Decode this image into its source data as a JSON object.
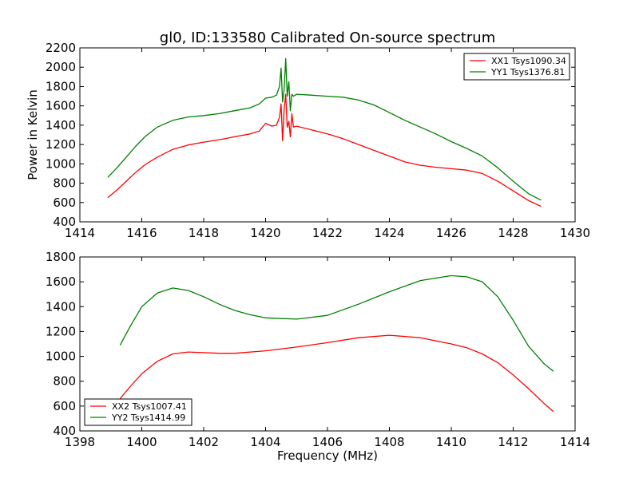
{
  "figure": {
    "title": "gl0, ID:133580 Calibrated On-source spectrum",
    "ylabel": "Power in Kelvin",
    "xlabel": "Frequency (MHz)"
  },
  "chart_data": [
    {
      "type": "line",
      "title": "gl0, ID:133580 Calibrated On-source spectrum",
      "xlabel": "",
      "ylabel": "Power in Kelvin",
      "xlim": [
        1414,
        1430
      ],
      "ylim": [
        400,
        2200
      ],
      "xticks": [
        1414,
        1416,
        1418,
        1420,
        1422,
        1424,
        1426,
        1428,
        1430
      ],
      "yticks": [
        400,
        600,
        800,
        1000,
        1200,
        1400,
        1600,
        1800,
        2000,
        2200
      ],
      "grid": false,
      "legend_position": "top-right",
      "series": [
        {
          "name": "XX1 Tsys1090.34",
          "color": "#ff0000",
          "x": [
            1414.9,
            1415.2,
            1415.5,
            1415.8,
            1416.1,
            1416.5,
            1417.0,
            1417.5,
            1418.0,
            1418.5,
            1419.0,
            1419.5,
            1419.8,
            1420.0,
            1420.2,
            1420.35,
            1420.45,
            1420.5,
            1420.55,
            1420.6,
            1420.65,
            1420.7,
            1420.75,
            1420.8,
            1420.85,
            1420.9,
            1421.0,
            1421.5,
            1422.0,
            1422.5,
            1423.0,
            1423.5,
            1424.0,
            1424.5,
            1425.0,
            1425.5,
            1426.0,
            1426.5,
            1427.0,
            1427.5,
            1428.0,
            1428.5,
            1428.9
          ],
          "y": [
            650,
            730,
            820,
            910,
            990,
            1070,
            1150,
            1195,
            1225,
            1250,
            1280,
            1310,
            1340,
            1420,
            1390,
            1400,
            1480,
            1620,
            1240,
            1560,
            1720,
            1380,
            1440,
            1280,
            1520,
            1380,
            1390,
            1350,
            1310,
            1260,
            1200,
            1140,
            1080,
            1020,
            985,
            965,
            950,
            935,
            900,
            820,
            720,
            620,
            560
          ]
        },
        {
          "name": "YY1 Tsys1376.81",
          "color": "#008000",
          "x": [
            1414.9,
            1415.2,
            1415.5,
            1415.8,
            1416.1,
            1416.5,
            1417.0,
            1417.5,
            1418.0,
            1418.5,
            1419.0,
            1419.5,
            1419.8,
            1420.0,
            1420.2,
            1420.35,
            1420.45,
            1420.5,
            1420.55,
            1420.6,
            1420.65,
            1420.7,
            1420.75,
            1420.8,
            1420.85,
            1420.9,
            1421.0,
            1421.5,
            1422.0,
            1422.5,
            1423.0,
            1423.5,
            1424.0,
            1424.5,
            1425.0,
            1425.5,
            1426.0,
            1426.5,
            1427.0,
            1427.5,
            1428.0,
            1428.5,
            1428.9
          ],
          "y": [
            860,
            960,
            1070,
            1180,
            1280,
            1380,
            1450,
            1485,
            1500,
            1520,
            1550,
            1580,
            1620,
            1680,
            1690,
            1710,
            1800,
            1990,
            1640,
            1770,
            2090,
            1700,
            1850,
            1550,
            1720,
            1700,
            1720,
            1710,
            1700,
            1690,
            1660,
            1610,
            1530,
            1450,
            1380,
            1310,
            1230,
            1160,
            1080,
            960,
            820,
            690,
            625
          ]
        }
      ]
    },
    {
      "type": "line",
      "title": "",
      "xlabel": "Frequency (MHz)",
      "ylabel": "",
      "xlim": [
        1398,
        1414
      ],
      "ylim": [
        400,
        1800
      ],
      "xticks": [
        1398,
        1400,
        1402,
        1404,
        1406,
        1408,
        1410,
        1412,
        1414
      ],
      "yticks": [
        400,
        600,
        800,
        1000,
        1200,
        1400,
        1600,
        1800
      ],
      "grid": false,
      "legend_position": "bottom-left",
      "series": [
        {
          "name": "XX2 Tsys1007.41",
          "color": "#ff0000",
          "x": [
            1399.3,
            1399.6,
            1400.0,
            1400.5,
            1401.0,
            1401.5,
            1402.0,
            1402.5,
            1403.0,
            1404.0,
            1405.0,
            1406.0,
            1407.0,
            1408.0,
            1409.0,
            1410.0,
            1410.5,
            1411.0,
            1411.5,
            1412.0,
            1412.5,
            1413.0,
            1413.3
          ],
          "y": [
            660,
            750,
            860,
            960,
            1020,
            1035,
            1030,
            1025,
            1025,
            1045,
            1075,
            1110,
            1150,
            1170,
            1150,
            1100,
            1070,
            1020,
            950,
            850,
            740,
            620,
            555
          ]
        },
        {
          "name": "YY2 Tsys1414.99",
          "color": "#008000",
          "x": [
            1399.3,
            1399.6,
            1400.0,
            1400.5,
            1401.0,
            1401.5,
            1402.0,
            1402.5,
            1403.0,
            1403.5,
            1404.0,
            1405.0,
            1406.0,
            1407.0,
            1408.0,
            1409.0,
            1410.0,
            1410.5,
            1411.0,
            1411.5,
            1412.0,
            1412.5,
            1413.0,
            1413.3
          ],
          "y": [
            1090,
            1230,
            1400,
            1510,
            1550,
            1530,
            1480,
            1420,
            1370,
            1335,
            1310,
            1300,
            1330,
            1420,
            1520,
            1610,
            1650,
            1640,
            1600,
            1480,
            1290,
            1080,
            940,
            880
          ]
        }
      ]
    }
  ]
}
